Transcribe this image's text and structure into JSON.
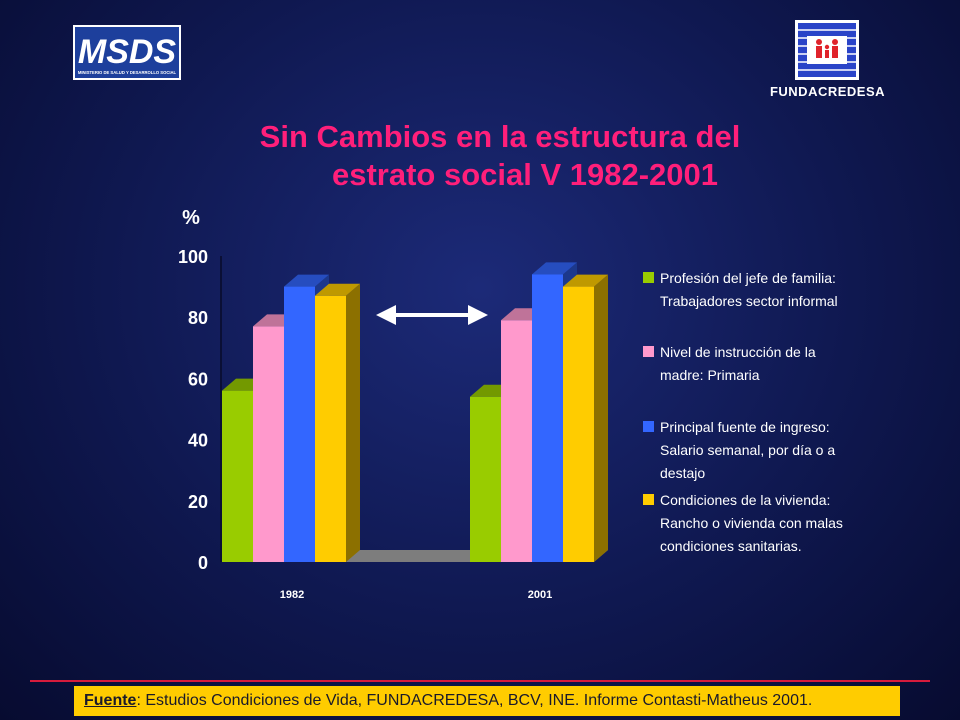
{
  "header": {
    "logo_left": "MSDS",
    "logo_left_subtitle": "MINISTERIO DE SALUD Y DESARROLLO SOCIAL",
    "logo_right_label": "FUNDACREDESA"
  },
  "title": {
    "line1": "Sin Cambios en la estructura del",
    "line2": "estrato social V 1982-2001"
  },
  "chart_data": {
    "type": "bar",
    "ylabel": "%",
    "ylim": [
      0,
      100
    ],
    "yticks": [
      "0",
      "20",
      "40",
      "60",
      "80",
      "100"
    ],
    "categories": [
      "1982",
      "2001"
    ],
    "series": [
      {
        "name": "Profesión del jefe de familia: Trabajadores sector informal",
        "values": [
          56,
          54
        ],
        "color": "#99cc00"
      },
      {
        "name": "Nivel de instrucción de la madre: Primaria",
        "values": [
          77,
          79
        ],
        "color": "#ff99cc"
      },
      {
        "name": "Principal fuente de ingreso: Salario semanal, por día o a destajo",
        "values": [
          90,
          94
        ],
        "color": "#3366ff"
      },
      {
        "name": "Condiciones de la vivienda: Rancho o vivienda con malas condiciones sanitarias.",
        "values": [
          87,
          90
        ],
        "color": "#ffcc00"
      }
    ],
    "legend_placement": "right",
    "grid": false,
    "annotation": "double-headed arrow between 1982 and 2001"
  },
  "legend": [
    {
      "lines": [
        "Profesión del jefe de familia:",
        "Trabajadores sector informal"
      ],
      "color": "#99cc00"
    },
    {
      "lines": [
        "Nivel de instrucción de la",
        "madre: Primaria"
      ],
      "color": "#ff99cc"
    },
    {
      "lines": [
        "Principal fuente de ingreso:",
        "Salario semanal, por día o a",
        "destajo"
      ],
      "color": "#3366ff"
    },
    {
      "lines": [
        "Condiciones de la vivienda:",
        "Rancho o vivienda con malas",
        "condiciones sanitarias."
      ],
      "color": "#ffcc00"
    }
  ],
  "footer": {
    "label": "Fuente",
    "text": ": Estudios Condiciones de Vida, FUNDACREDESA, BCV, INE. Informe Contasti-Matheus 2001."
  }
}
